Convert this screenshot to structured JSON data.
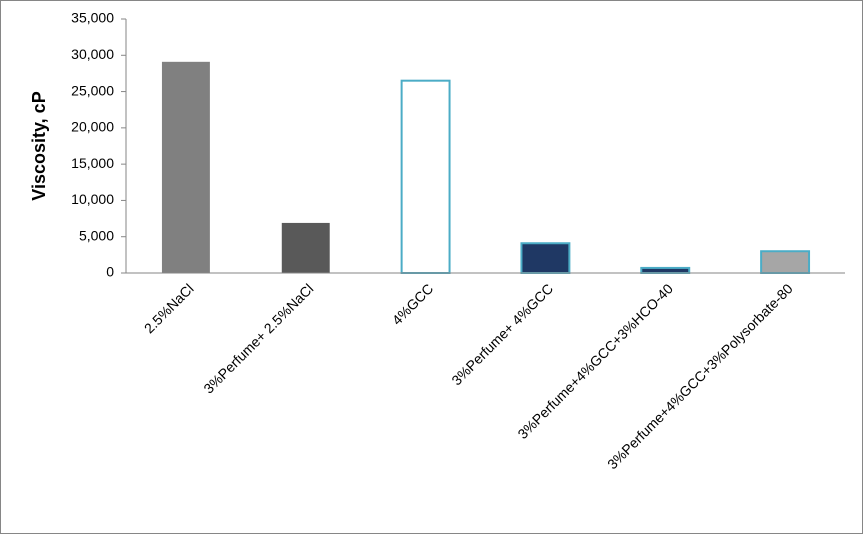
{
  "chart_data": {
    "type": "bar",
    "ylabel": "Viscosity, cP",
    "categories": [
      "2.5%NaCl",
      "3%Perfume+ 2.5%NaCl",
      "4%GCC",
      "3%Perfume+ 4%GCC",
      "3%Perfume+4%GCC+3%HCO-40",
      "3%Perfume+4%GCC+3%Polysorbate-80"
    ],
    "values": [
      29100,
      6900,
      26500,
      4100,
      700,
      3000
    ],
    "colors": [
      "#808080",
      "#595959",
      "#ffffff",
      "#1f3864",
      "#1f3864",
      "#a6a6a6"
    ],
    "stroke_colors": [
      null,
      null,
      "#4bacc6",
      "#4bacc6",
      "#4bacc6",
      "#4bacc6"
    ],
    "ylim": [
      0,
      35000
    ],
    "yticks": [
      0,
      {
        "value": 5000,
        "label": "5,000"
      },
      {
        "value": 10000,
        "label": "10,000"
      },
      {
        "value": 15000,
        "label": "15,000"
      },
      {
        "value": 20000,
        "label": "20,000"
      },
      {
        "value": 25000,
        "label": "25,000"
      },
      {
        "value": 30000,
        "label": "30,000"
      },
      {
        "value": 35000,
        "label": "35,000"
      }
    ],
    "grid": false
  }
}
